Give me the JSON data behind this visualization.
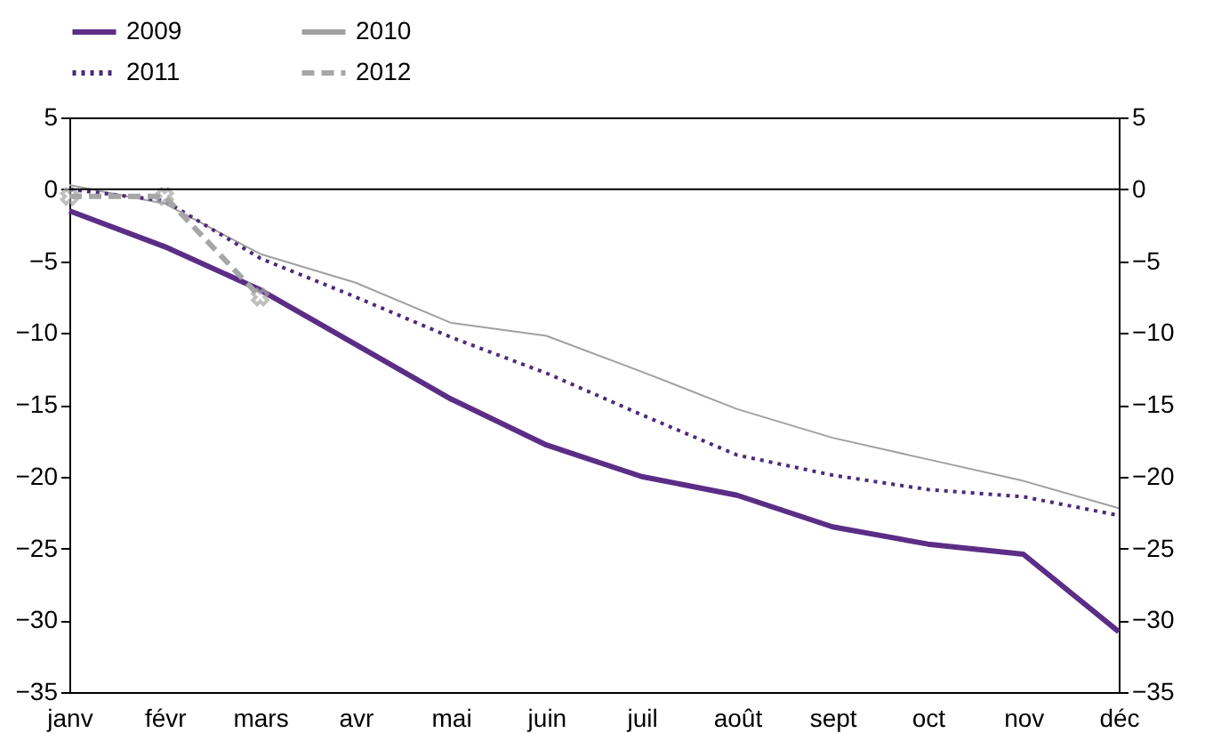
{
  "chart_data": {
    "type": "line",
    "categories": [
      "janv",
      "févr",
      "mars",
      "avr",
      "mai",
      "juin",
      "juil",
      "août",
      "sept",
      "oct",
      "nov",
      "déc"
    ],
    "series": [
      {
        "name": "2009",
        "color": "#5c2d86",
        "line_style": "solid",
        "values": [
          -1.5,
          -4,
          -7,
          -10.8,
          -14.6,
          -17.8,
          -20,
          -21.3,
          -23.5,
          -24.7,
          -25.4,
          -30.8
        ]
      },
      {
        "name": "2010",
        "color": "#a0a0a0",
        "line_style": "solid",
        "values": [
          0.3,
          -1,
          -4.5,
          -6.5,
          -9.3,
          -10.2,
          -12.7,
          -15.3,
          -17.3,
          -18.8,
          -20.3,
          -22.2
        ]
      },
      {
        "name": "2011",
        "color": "#4b2a7a",
        "line_style": "dotted",
        "values": [
          0,
          -0.8,
          -4.8,
          -7.5,
          -10.3,
          -12.8,
          -15.7,
          -18.5,
          -19.9,
          -20.9,
          -21.4,
          -22.7
        ]
      },
      {
        "name": "2012",
        "color": "#a6a6a6",
        "line_style": "dashed",
        "marker": "cross",
        "values": [
          -0.5,
          -0.5,
          -7.5,
          null,
          null,
          null,
          null,
          null,
          null,
          null,
          null,
          null
        ]
      }
    ],
    "ylim": [
      -35,
      5
    ],
    "yticks": [
      5,
      0,
      -5,
      -10,
      -15,
      -20,
      -25,
      -30,
      -35
    ],
    "y2lim": [
      -35,
      5
    ],
    "y2ticks": [
      5,
      0,
      -5,
      -10,
      -15,
      -20,
      -25,
      -30,
      -35
    ],
    "ref_lines": [
      {
        "axis": "y",
        "value": 0,
        "color": "#000000"
      }
    ],
    "grid": false,
    "legend": "top"
  }
}
